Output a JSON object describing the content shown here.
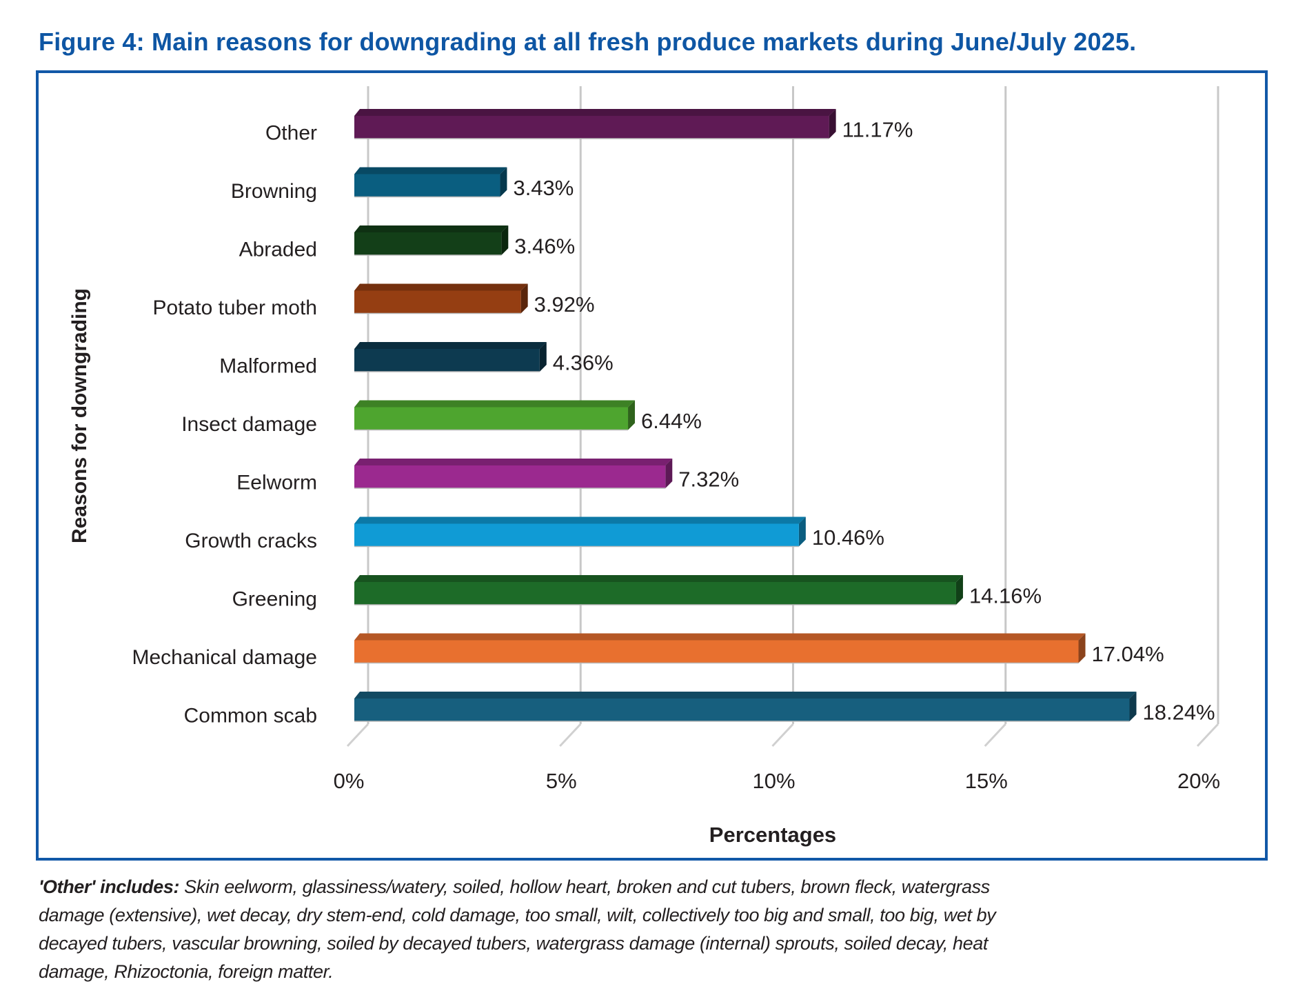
{
  "figure": {
    "title": "Figure 4: Main reasons for downgrading at all fresh produce markets during June/July 2025.",
    "border_color": "#1158A7",
    "title_color": "#0E56A4"
  },
  "footnote": {
    "lead": "'Other' includes:",
    "lines": [
      " Skin eelworm, glassiness/watery, soiled, hollow heart, broken and cut tubers, brown fleck, watergrass",
      "damage (extensive), wet decay, dry stem-end, cold damage, too small, wilt, collectively too big and small, too big, wet by",
      "decayed tubers, vascular browning, soiled by decayed tubers, watergrass damage (internal) sprouts, soiled decay, heat",
      "damage, Rhizoctonia, foreign matter."
    ]
  },
  "chart_data": {
    "type": "bar",
    "orientation": "horizontal",
    "style": "3d",
    "title": "",
    "xlabel": "Percentages",
    "ylabel": "Reasons for downgrading",
    "xlim": [
      0,
      20
    ],
    "xticks": [
      0,
      5,
      10,
      15,
      20
    ],
    "xtick_labels": [
      "0%",
      "5%",
      "10%",
      "15%",
      "20%"
    ],
    "grid": "vertical",
    "categories": [
      "Other",
      "Browning",
      "Abraded",
      "Potato tuber moth",
      "Malformed",
      "Insect damage",
      "Eelworm",
      "Growth cracks",
      "Greening",
      "Mechanical damage",
      "Common scab"
    ],
    "values": [
      11.17,
      3.43,
      3.46,
      3.92,
      4.36,
      6.44,
      7.32,
      10.46,
      14.16,
      17.04,
      18.24
    ],
    "value_labels": [
      "11.17%",
      "3.43%",
      "3.46%",
      "3.92%",
      "4.36%",
      "6.44%",
      "7.32%",
      "10.46%",
      "14.16%",
      "17.04%",
      "18.24%"
    ],
    "colors": [
      "#5F1A55",
      "#0A5E80",
      "#133F18",
      "#953E12",
      "#0D3A50",
      "#4EA52F",
      "#9B298F",
      "#109BD5",
      "#1D6B28",
      "#E8702F",
      "#175F7E"
    ]
  }
}
